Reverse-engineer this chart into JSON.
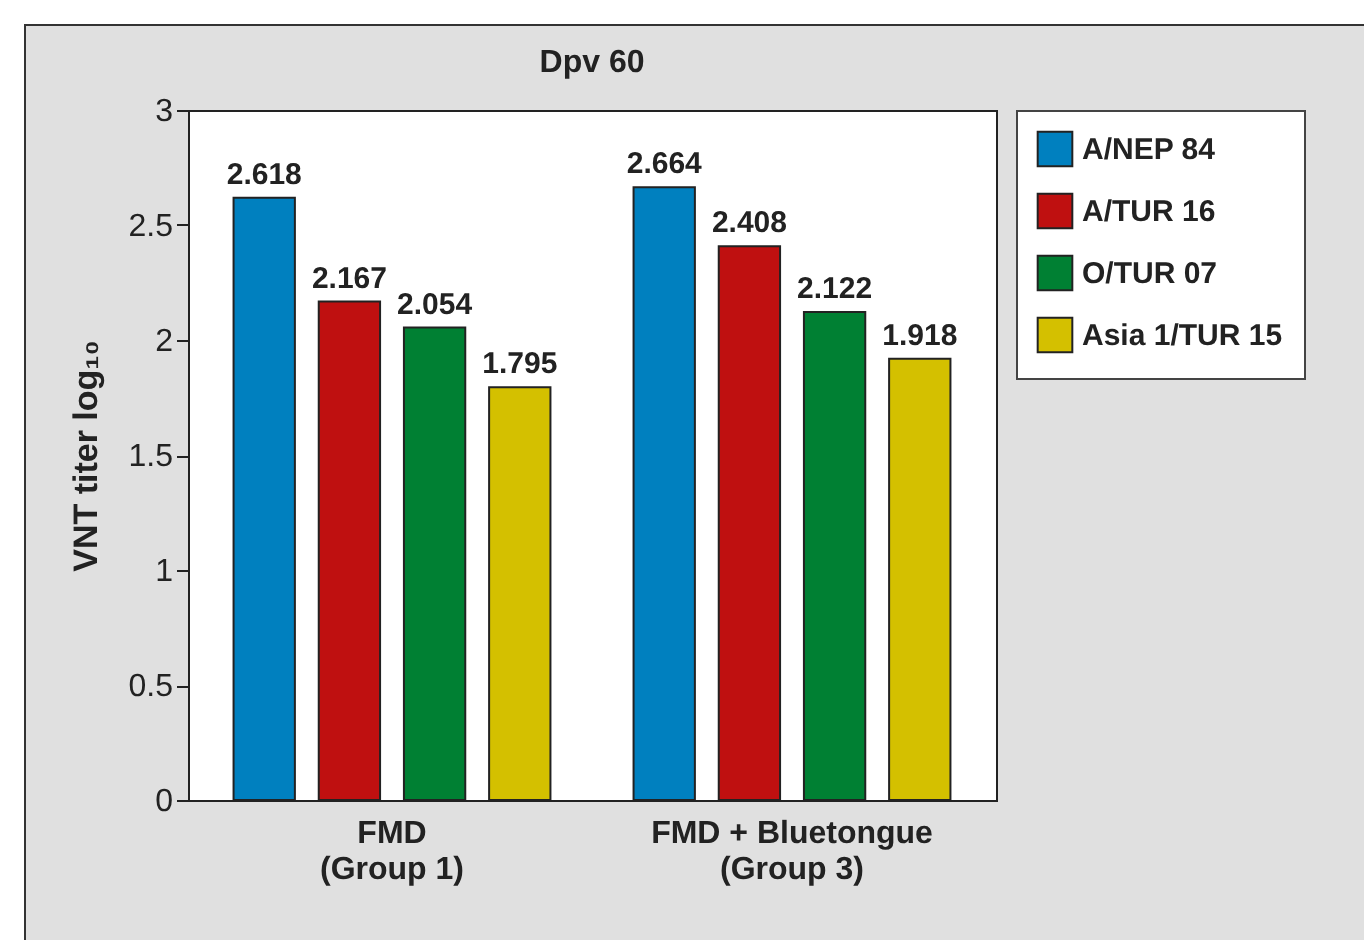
{
  "chart_data": {
    "type": "bar",
    "title": "Dpv 60",
    "ylabel": "VNT titer log₁₀",
    "categories": [
      "FMD\n(Group 1)",
      "FMD + Bluetongue\n(Group 3)"
    ],
    "series": [
      {
        "name": "A/NEP 84",
        "color": "#0080bf",
        "values": [
          2.618,
          2.664
        ]
      },
      {
        "name": "A/TUR 16",
        "color": "#bf1010",
        "values": [
          2.167,
          2.408
        ]
      },
      {
        "name": "O/TUR 07",
        "color": "#008033",
        "values": [
          2.054,
          2.122
        ]
      },
      {
        "name": "Asia 1/TUR 15",
        "color": "#d4c000",
        "values": [
          1.795,
          1.918
        ]
      }
    ],
    "ylim": [
      0,
      3
    ],
    "yticks": [
      0,
      0.5,
      1,
      1.5,
      2,
      2.5,
      3
    ],
    "grid": false,
    "legend": "right",
    "data_labels": true
  }
}
